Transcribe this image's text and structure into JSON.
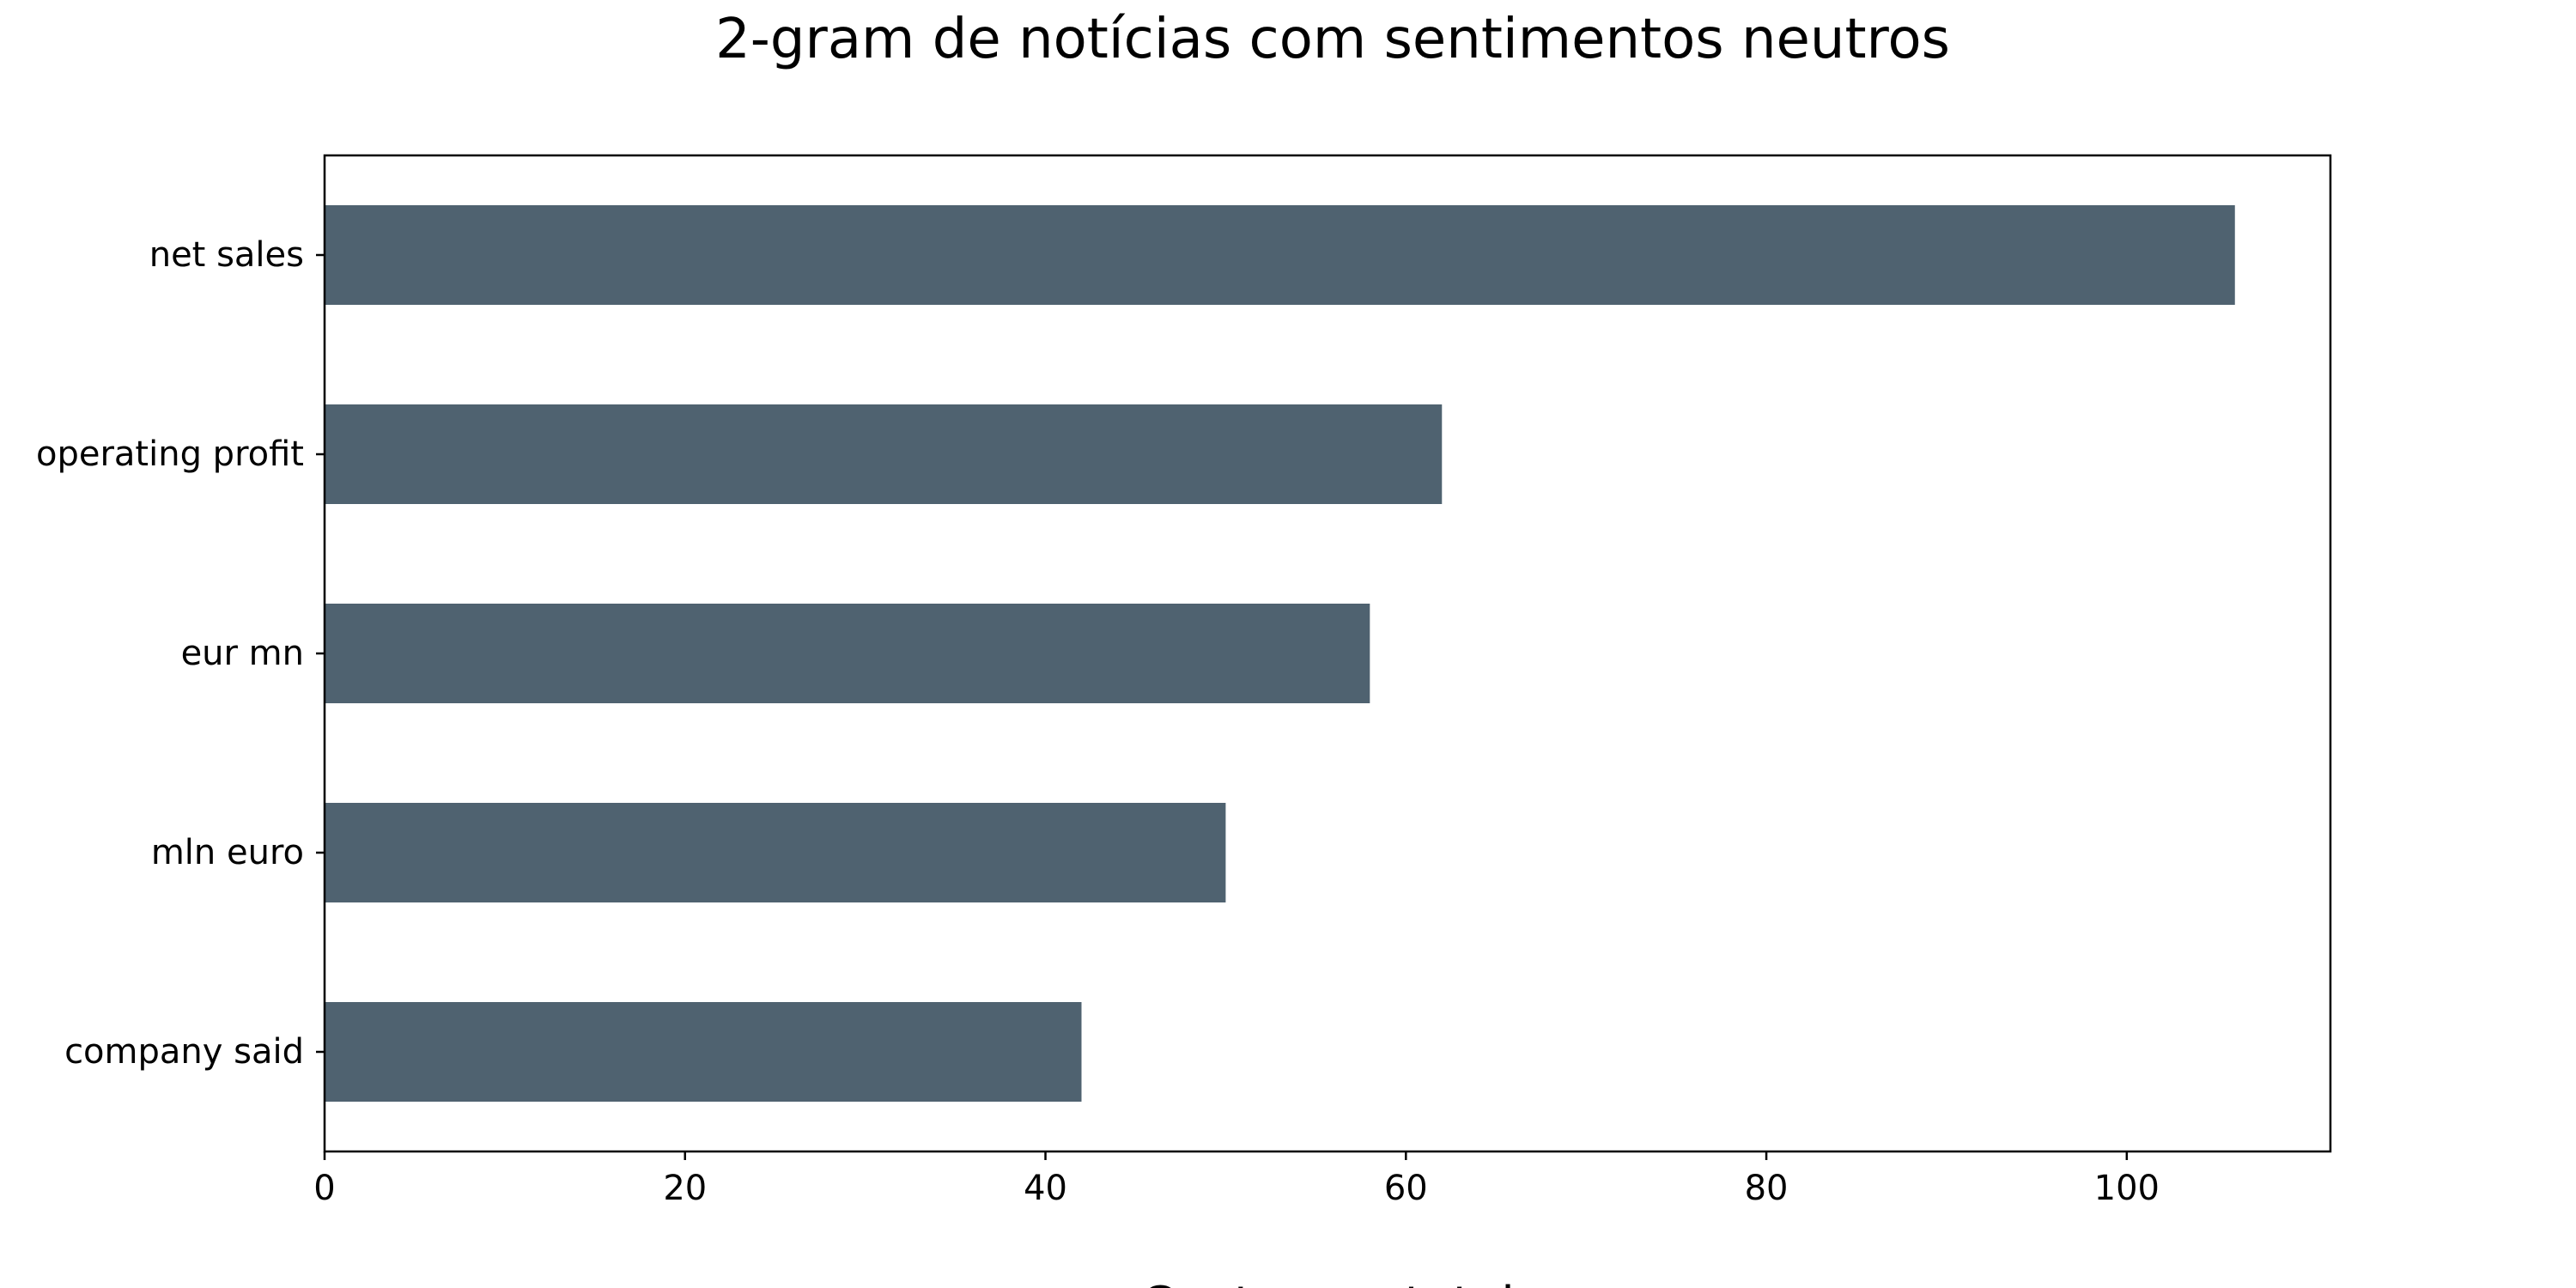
{
  "chart_data": {
    "type": "bar",
    "orientation": "horizontal",
    "title": "2-gram de notícias com sentimentos neutros",
    "xlabel": "Contagem total",
    "ylabel": "",
    "categories": [
      "net sales",
      "operating profit",
      "eur mn",
      "mln euro",
      "company said"
    ],
    "values": [
      106,
      62,
      58,
      50,
      42
    ],
    "xlim": [
      0,
      111.3
    ],
    "xticks": [
      0,
      20,
      40,
      60,
      80,
      100
    ],
    "grid": false,
    "legend": "none",
    "bar_color": "#4f6270"
  }
}
